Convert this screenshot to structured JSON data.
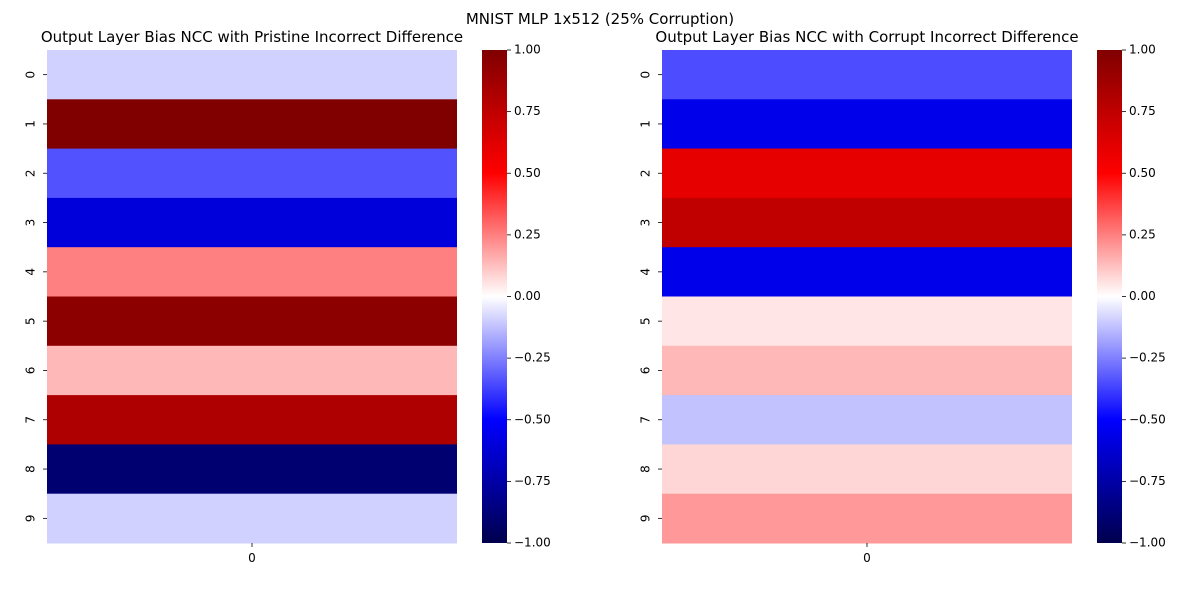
{
  "figure": {
    "suptitle": "MNIST MLP 1x512 (25% Corruption)"
  },
  "colormap": {
    "name": "seismic",
    "stops": [
      "#00004d",
      "#0000ff",
      "#ffffff",
      "#ff0000",
      "#800000"
    ]
  },
  "chart_data": [
    {
      "type": "heatmap",
      "title": "Output Layer Bias NCC with Pristine Incorrect Difference",
      "x_ticks": [
        "0"
      ],
      "y_ticks": [
        "0",
        "1",
        "2",
        "3",
        "4",
        "5",
        "6",
        "7",
        "8",
        "9"
      ],
      "values": [
        -0.09,
        1.0,
        -0.34,
        -0.6,
        0.25,
        0.95,
        0.14,
        0.82,
        -0.9,
        -0.09
      ],
      "vmin": -1.0,
      "vmax": 1.0,
      "colorbar_ticks": [
        "1.00",
        "0.75",
        "0.50",
        "0.25",
        "0.00",
        "−0.25",
        "−0.50",
        "−0.75",
        "−1.00"
      ],
      "colorbar_tick_values": [
        1.0,
        0.75,
        0.5,
        0.25,
        0.0,
        -0.25,
        -0.5,
        -0.75,
        -1.0
      ]
    },
    {
      "type": "heatmap",
      "title": "Output Layer Bias NCC with Corrupt Incorrect Difference",
      "x_ticks": [
        "0"
      ],
      "y_ticks": [
        "0",
        "1",
        "2",
        "3",
        "4",
        "5",
        "6",
        "7",
        "8",
        "9"
      ],
      "values": [
        -0.35,
        -0.56,
        0.6,
        0.75,
        -0.56,
        0.05,
        0.14,
        -0.12,
        0.08,
        0.2
      ],
      "vmin": -1.0,
      "vmax": 1.0,
      "colorbar_ticks": [
        "1.00",
        "0.75",
        "0.50",
        "0.25",
        "0.00",
        "−0.25",
        "−0.50",
        "−0.75",
        "−1.00"
      ],
      "colorbar_tick_values": [
        1.0,
        0.75,
        0.5,
        0.25,
        0.0,
        -0.25,
        -0.5,
        -0.75,
        -1.0
      ]
    }
  ]
}
